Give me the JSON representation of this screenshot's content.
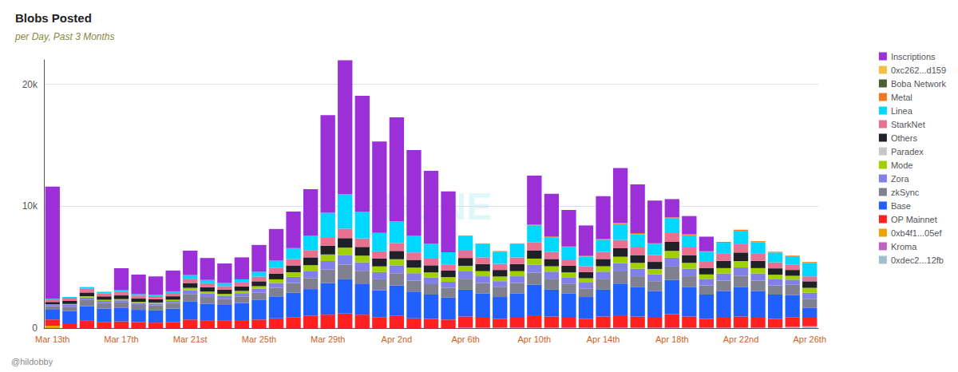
{
  "chart_data": {
    "type": "bar",
    "title": "Blobs Posted",
    "subtitle": "per Day, Past 3 Months",
    "footnote": "@hildobby",
    "watermark": "DUNE",
    "stacked": true,
    "grid": true,
    "legend": "right",
    "categories": [
      "Mar 13th",
      null,
      null,
      null,
      "Mar 17th",
      null,
      null,
      null,
      "Mar 21st",
      null,
      null,
      null,
      "Mar 25th",
      null,
      null,
      null,
      "Mar 29th",
      null,
      null,
      null,
      "Apr 2nd",
      null,
      null,
      null,
      "Apr 6th",
      null,
      null,
      null,
      "Apr 10th",
      null,
      null,
      null,
      "Apr 14th",
      null,
      null,
      null,
      "Apr 18th",
      null,
      null,
      null,
      "Apr 22nd",
      null,
      null,
      null,
      "Apr 26th"
    ],
    "ylim": [
      0,
      22000
    ],
    "yticks": [
      0,
      {
        "value": 10000,
        "label": "10k"
      },
      {
        "value": 20000,
        "label": "20k"
      }
    ],
    "series": [
      {
        "name": "0xdec2...12fb",
        "color": "#a0c0d0",
        "values": [
          0,
          0,
          0,
          0,
          0,
          0,
          0,
          0,
          0,
          0,
          0,
          0,
          0,
          0,
          0,
          0,
          0,
          0,
          0,
          0,
          0,
          0,
          0,
          0,
          0,
          0,
          0,
          0,
          0,
          0,
          0,
          0,
          0,
          0,
          0,
          0,
          0,
          0,
          0,
          0,
          0,
          0,
          0,
          50,
          100
        ]
      },
      {
        "name": "Kroma",
        "color": "#c060c0",
        "values": [
          0,
          0,
          0,
          0,
          0,
          0,
          0,
          0,
          0,
          0,
          0,
          0,
          0,
          0,
          0,
          0,
          0,
          0,
          0,
          0,
          0,
          0,
          0,
          0,
          50,
          50,
          50,
          50,
          50,
          50,
          50,
          50,
          50,
          50,
          50,
          50,
          50,
          50,
          50,
          50,
          50,
          50,
          50,
          50,
          50
        ]
      },
      {
        "name": "0xb4f1...05ef",
        "color": "#f0a000",
        "values": [
          200,
          0,
          0,
          0,
          0,
          0,
          0,
          0,
          0,
          0,
          0,
          0,
          0,
          0,
          0,
          0,
          0,
          0,
          0,
          0,
          0,
          0,
          0,
          0,
          0,
          0,
          0,
          0,
          0,
          0,
          0,
          0,
          0,
          0,
          0,
          0,
          0,
          0,
          0,
          0,
          0,
          0,
          0,
          0,
          0
        ]
      },
      {
        "name": "OP Mainnet",
        "color": "#ff2020",
        "values": [
          500,
          400,
          600,
          500,
          550,
          500,
          450,
          500,
          700,
          600,
          600,
          650,
          700,
          800,
          900,
          1000,
          1100,
          1200,
          1100,
          900,
          1000,
          800,
          750,
          700,
          900,
          800,
          700,
          800,
          1000,
          900,
          800,
          700,
          900,
          1000,
          900,
          800,
          1100,
          900,
          700,
          800,
          900,
          800,
          700,
          800,
          700
        ]
      },
      {
        "name": "Base",
        "color": "#2060ff",
        "values": [
          800,
          1000,
          1200,
          1100,
          1100,
          1000,
          1000,
          1100,
          1500,
          1400,
          1300,
          1400,
          1600,
          1800,
          2000,
          2200,
          2600,
          2800,
          2500,
          2200,
          2500,
          2200,
          2000,
          1800,
          2200,
          2000,
          1800,
          2000,
          2500,
          2200,
          2000,
          1800,
          2200,
          2600,
          2400,
          2200,
          2800,
          2400,
          2000,
          2200,
          2400,
          2200,
          2000,
          1800,
          800
        ]
      },
      {
        "name": "zkSync",
        "color": "#808090",
        "values": [
          300,
          350,
          500,
          450,
          450,
          400,
          400,
          450,
          600,
          550,
          500,
          550,
          600,
          700,
          800,
          900,
          1100,
          1200,
          1100,
          900,
          1000,
          900,
          850,
          800,
          900,
          850,
          800,
          850,
          1000,
          900,
          800,
          700,
          900,
          1000,
          900,
          800,
          1100,
          900,
          750,
          850,
          950,
          850,
          750,
          850,
          750
        ]
      },
      {
        "name": "Zora",
        "color": "#8080e8",
        "values": [
          100,
          150,
          200,
          180,
          180,
          160,
          160,
          180,
          300,
          270,
          250,
          270,
          320,
          400,
          500,
          600,
          700,
          800,
          700,
          600,
          650,
          600,
          550,
          500,
          600,
          550,
          500,
          550,
          650,
          580,
          520,
          480,
          580,
          680,
          620,
          560,
          720,
          620,
          500,
          580,
          680,
          580,
          500,
          420,
          500
        ]
      },
      {
        "name": "Mode",
        "color": "#a0d000",
        "values": [
          50,
          80,
          120,
          100,
          100,
          90,
          90,
          100,
          200,
          180,
          160,
          180,
          220,
          300,
          380,
          460,
          540,
          600,
          540,
          460,
          500,
          460,
          420,
          380,
          460,
          420,
          380,
          420,
          500,
          440,
          400,
          360,
          440,
          520,
          480,
          440,
          560,
          480,
          400,
          440,
          520,
          440,
          380,
          320,
          400
        ]
      },
      {
        "name": "Paradex",
        "color": "#c8c8c8",
        "values": [
          0,
          0,
          0,
          0,
          0,
          0,
          0,
          0,
          0,
          0,
          0,
          0,
          0,
          0,
          0,
          0,
          0,
          0,
          0,
          0,
          0,
          0,
          0,
          0,
          0,
          0,
          0,
          0,
          0,
          0,
          0,
          0,
          0,
          0,
          0,
          0,
          0,
          0,
          0,
          0,
          0,
          0,
          0,
          0,
          0
        ]
      },
      {
        "name": "Others",
        "color": "#202028",
        "values": [
          200,
          250,
          300,
          280,
          300,
          270,
          270,
          280,
          400,
          360,
          340,
          360,
          400,
          480,
          560,
          640,
          720,
          780,
          720,
          640,
          680,
          640,
          580,
          540,
          640,
          580,
          540,
          580,
          680,
          600,
          540,
          500,
          600,
          700,
          640,
          580,
          740,
          640,
          540,
          600,
          700,
          600,
          520,
          480,
          540
        ]
      },
      {
        "name": "StarkNet",
        "color": "#e87090",
        "values": [
          200,
          250,
          300,
          250,
          280,
          250,
          250,
          270,
          350,
          320,
          300,
          320,
          380,
          450,
          520,
          600,
          700,
          780,
          700,
          600,
          650,
          600,
          550,
          500,
          600,
          550,
          500,
          550,
          650,
          580,
          520,
          480,
          580,
          680,
          620,
          560,
          720,
          620,
          500,
          580,
          680,
          580,
          500,
          420,
          400
        ]
      },
      {
        "name": "Linea",
        "color": "#00d8ff",
        "values": [
          50,
          80,
          150,
          120,
          150,
          120,
          120,
          140,
          300,
          270,
          250,
          270,
          400,
          600,
          900,
          1200,
          2000,
          2800,
          2200,
          1500,
          1800,
          1400,
          1200,
          1000,
          1200,
          1100,
          1000,
          1100,
          1400,
          1200,
          1000,
          800,
          1000,
          1300,
          1100,
          900,
          1200,
          1000,
          800,
          900,
          1100,
          950,
          800,
          700,
          1100
        ]
      },
      {
        "name": "Metal",
        "color": "#f07820",
        "values": [
          0,
          0,
          0,
          0,
          0,
          0,
          0,
          0,
          0,
          0,
          0,
          0,
          0,
          0,
          0,
          0,
          0,
          0,
          0,
          0,
          0,
          0,
          0,
          0,
          50,
          50,
          50,
          50,
          80,
          70,
          60,
          50,
          70,
          90,
          80,
          70,
          90,
          80,
          60,
          70,
          90,
          80,
          60,
          50,
          80
        ]
      },
      {
        "name": "Boba Network",
        "color": "#4a6030",
        "values": [
          0,
          0,
          0,
          0,
          0,
          0,
          0,
          0,
          0,
          0,
          0,
          0,
          0,
          0,
          0,
          0,
          0,
          0,
          0,
          0,
          0,
          0,
          0,
          0,
          0,
          0,
          0,
          0,
          0,
          0,
          0,
          0,
          0,
          0,
          0,
          0,
          0,
          0,
          0,
          0,
          0,
          0,
          0,
          0,
          0
        ]
      },
      {
        "name": "0xc262...d159",
        "color": "#f0c040",
        "values": [
          0,
          0,
          0,
          0,
          0,
          0,
          0,
          0,
          0,
          0,
          0,
          0,
          0,
          0,
          0,
          0,
          0,
          0,
          0,
          0,
          0,
          0,
          0,
          0,
          0,
          0,
          0,
          0,
          0,
          0,
          0,
          0,
          0,
          0,
          0,
          0,
          0,
          0,
          0,
          0,
          0,
          0,
          0,
          0,
          0
        ]
      },
      {
        "name": "Inscriptions",
        "color": "#9b30d9",
        "values": [
          9200,
          0,
          0,
          0,
          1800,
          1600,
          1500,
          1700,
          2000,
          1800,
          1600,
          1800,
          2200,
          2600,
          3000,
          3800,
          8000,
          11000,
          9500,
          7500,
          8500,
          7000,
          6000,
          5000,
          0,
          0,
          0,
          0,
          4000,
          3500,
          3000,
          2500,
          3500,
          4500,
          4000,
          3500,
          1500,
          1500,
          1200,
          0,
          0,
          0,
          0,
          0,
          0
        ]
      }
    ]
  }
}
